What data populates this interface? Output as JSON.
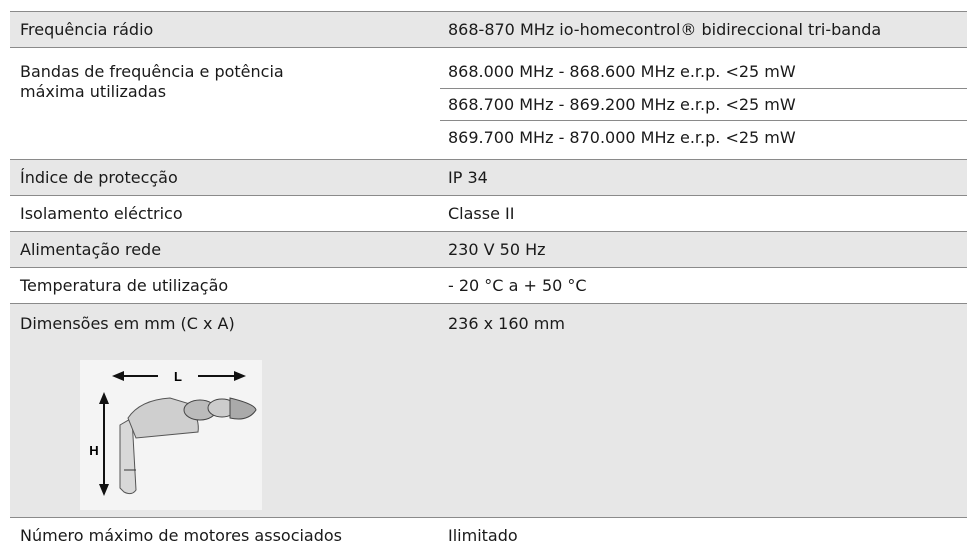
{
  "table": {
    "rows": [
      [
        "Frequência rádio",
        "868-870 MHz io-homecontrol® bidireccional tri-banda"
      ],
      [
        "Bandas de frequência e potência máxima utilizadas",
        "868.000 MHz - 868.600 MHz e.r.p. <25 mW",
        "868.700 MHz - 869.200 MHz e.r.p. <25 mW",
        "869.700 MHz - 870.000 MHz e.r.p. <25 mW"
      ],
      [
        "Índice de protecção",
        "IP 34"
      ],
      [
        "Isolamento eléctrico",
        "Classe II"
      ],
      [
        "Alimentação rede",
        "230 V 50 Hz"
      ],
      [
        "Temperatura de utilização",
        "- 20 °C a + 50 °C"
      ],
      [
        "Dimensões em mm (C x A)",
        "236 x 160 mm"
      ],
      [
        "Número máximo de motores associados",
        "Ilimitado"
      ]
    ]
  },
  "figure": {
    "labels": [
      "L",
      "H"
    ]
  }
}
